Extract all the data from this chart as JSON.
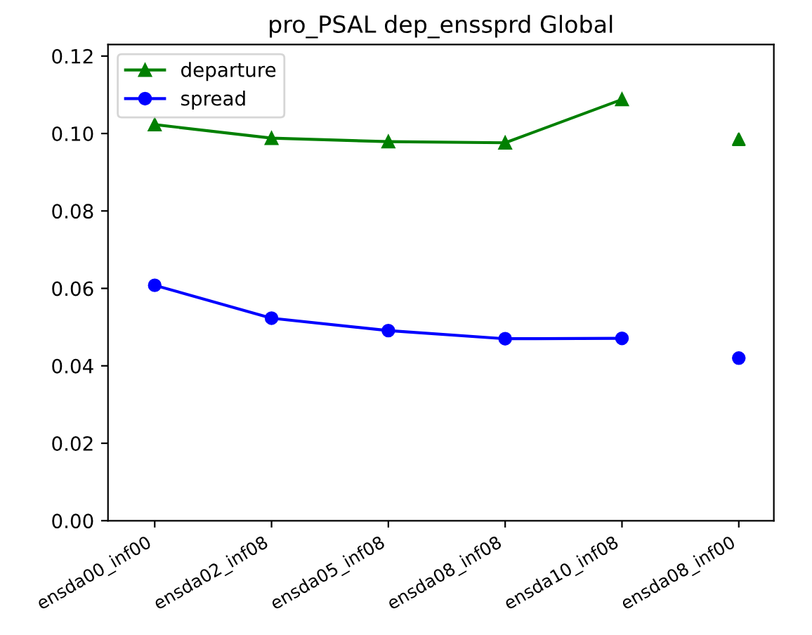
{
  "chart_data": {
    "type": "line",
    "title": "pro_PSAL dep_enssprd Global",
    "categories": [
      "ensda00_inf00",
      "ensda02_inf08",
      "ensda05_inf08",
      "ensda08_inf08",
      "ensda10_inf08",
      "ensda08_inf00"
    ],
    "ylim": [
      0,
      0.123
    ],
    "yticks": [
      {
        "value": 0,
        "label": "0.00"
      },
      {
        "value": 0.02,
        "label": "0.02"
      },
      {
        "value": 0.04,
        "label": "0.04"
      },
      {
        "value": 0.06,
        "label": "0.06"
      },
      {
        "value": 0.08,
        "label": "0.08"
      },
      {
        "value": 0.1,
        "label": "0.10"
      },
      {
        "value": 0.12,
        "label": "0.12"
      }
    ],
    "legend": "top left",
    "series": [
      {
        "name": "departure",
        "color": "#008000",
        "marker": "triangle",
        "values": [
          0.1023,
          0.0988,
          0.0979,
          0.0976,
          0.1088,
          null
        ]
      },
      {
        "name": "spread",
        "color": "#0000ff",
        "marker": "circle",
        "values": [
          0.0608,
          0.0523,
          0.0491,
          0.047,
          0.0471,
          null
        ]
      },
      {
        "type": "scatter",
        "color": "#008000",
        "marker": "triangle",
        "values": [
          null,
          null,
          null,
          null,
          null,
          0.0985
        ]
      },
      {
        "type": "scatter",
        "color": "#0000ff",
        "marker": "circle",
        "values": [
          null,
          null,
          null,
          null,
          null,
          0.042
        ]
      }
    ]
  }
}
